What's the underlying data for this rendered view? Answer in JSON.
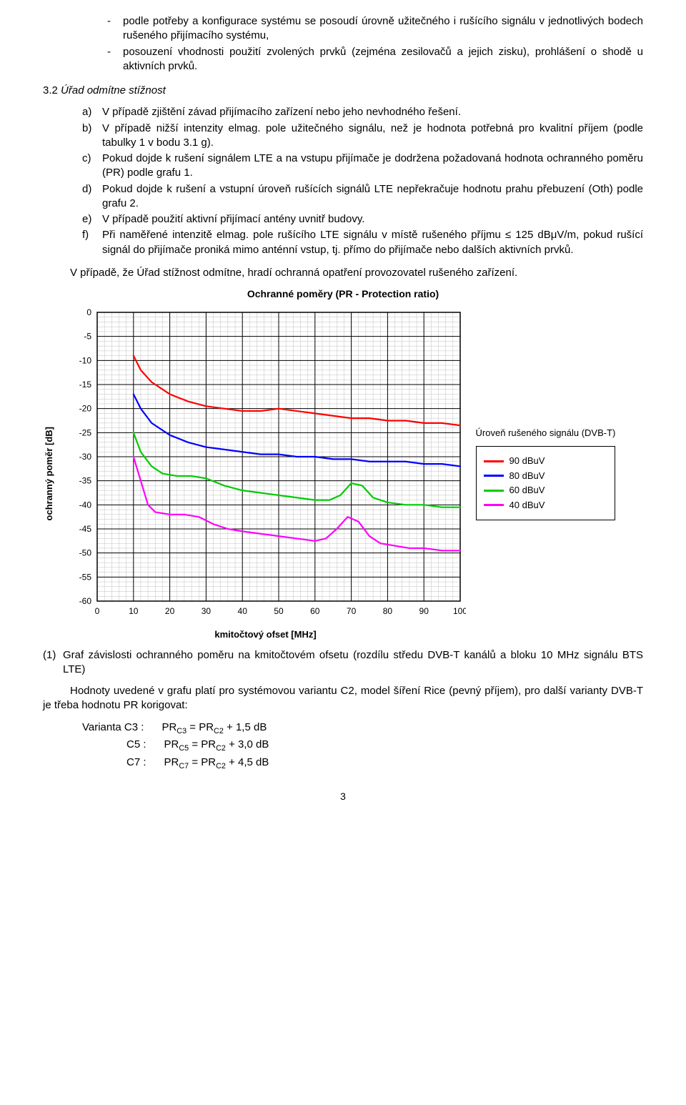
{
  "bullets": [
    "podle potřeby a konfigurace systému se posoudí úrovně užitečného i rušícího signálu v jednotlivých bodech rušeného přijímacího systému,",
    "posouzení vhodnosti použití zvolených prvků (zejména zesilovačů a jejich zisku), prohlášení o shodě u aktivních prvků."
  ],
  "section": {
    "num": "3.2",
    "title": "Úřad odmítne stížnost"
  },
  "letters": [
    {
      "mark": "a)",
      "text": "V případě zjištění závad přijímacího zařízení nebo jeho nevhodného řešení."
    },
    {
      "mark": "b)",
      "text": "V případě nižší intenzity elmag. pole užitečného signálu, než je hodnota potřebná pro kvalitní příjem (podle tabulky 1 v bodu 3.1 g)."
    },
    {
      "mark": "c)",
      "text": "Pokud dojde k rušení signálem LTE a na vstupu přijímače je dodržena požadovaná hodnota ochranného poměru (PR) podle grafu 1."
    },
    {
      "mark": "d)",
      "text": "Pokud dojde k rušení a vstupní úroveň rušících signálů LTE nepřekračuje hodnotu prahu přebuzení (Oth) podle grafu 2."
    },
    {
      "mark": "e)",
      "text": "V případě použití aktivní přijímací antény uvnitř budovy."
    },
    {
      "mark": "f)",
      "text": "Při naměřené intenzitě elmag. pole rušícího LTE signálu v místě rušeného příjmu ≤ 125 dBμV/m, pokud rušící signál do přijímače proniká mimo anténní vstup, tj. přímo do přijímače nebo dalších aktivních prvků."
    }
  ],
  "closing_para": "V případě, že Úřad stížnost odmítne, hradí ochranná opatření provozovatel rušeného zařízení.",
  "chart": {
    "title": "Ochranné poměry (PR - Protection ratio)",
    "y_label": "ochranný poměr [dB]",
    "x_label": "kmitočtový ofset [MHz]",
    "legend_title": "Úroveň rušeného signálu (DVB-T)",
    "legend_items": [
      {
        "color": "#ff0000",
        "label": "90 dBuV"
      },
      {
        "color": "#0000ff",
        "label": "80 dBuV"
      },
      {
        "color": "#00cc00",
        "label": "60 dBuV"
      },
      {
        "color": "#ff00ff",
        "label": "40 dBuV"
      }
    ],
    "xlim": [
      0,
      100
    ],
    "ylim": [
      -60,
      0
    ],
    "xtick_step": 10,
    "ytick_step": 5,
    "xticks": [
      0,
      10,
      20,
      30,
      40,
      50,
      60,
      70,
      80,
      90,
      100
    ],
    "yticks": [
      0,
      -5,
      -10,
      -15,
      -20,
      -25,
      -30,
      -35,
      -40,
      -45,
      -50,
      -55,
      -60
    ],
    "plot_bg": "#ffffff",
    "grid_major_color": "#000000",
    "grid_minor_color": "#bfbfbf",
    "border_color": "#000000",
    "line_width": 2.2,
    "tick_fontsize": 12,
    "series": {
      "s90": {
        "color": "#ff0000",
        "pts": [
          [
            10,
            -9
          ],
          [
            12,
            -12
          ],
          [
            15,
            -14.5
          ],
          [
            20,
            -17
          ],
          [
            25,
            -18.5
          ],
          [
            30,
            -19.5
          ],
          [
            35,
            -20
          ],
          [
            40,
            -20.5
          ],
          [
            45,
            -20.5
          ],
          [
            50,
            -20
          ],
          [
            55,
            -20.5
          ],
          [
            60,
            -21
          ],
          [
            65,
            -21.5
          ],
          [
            70,
            -22
          ],
          [
            75,
            -22
          ],
          [
            80,
            -22.5
          ],
          [
            85,
            -22.5
          ],
          [
            90,
            -23
          ],
          [
            95,
            -23
          ],
          [
            100,
            -23.5
          ]
        ]
      },
      "s80": {
        "color": "#0000ff",
        "pts": [
          [
            10,
            -17
          ],
          [
            12,
            -20
          ],
          [
            15,
            -23
          ],
          [
            20,
            -25.5
          ],
          [
            25,
            -27
          ],
          [
            30,
            -28
          ],
          [
            35,
            -28.5
          ],
          [
            40,
            -29
          ],
          [
            45,
            -29.5
          ],
          [
            50,
            -29.5
          ],
          [
            55,
            -30
          ],
          [
            60,
            -30
          ],
          [
            65,
            -30.5
          ],
          [
            70,
            -30.5
          ],
          [
            75,
            -31
          ],
          [
            80,
            -31
          ],
          [
            85,
            -31
          ],
          [
            90,
            -31.5
          ],
          [
            95,
            -31.5
          ],
          [
            100,
            -32
          ]
        ]
      },
      "s60": {
        "color": "#00cc00",
        "pts": [
          [
            10,
            -25
          ],
          [
            12,
            -29
          ],
          [
            15,
            -32
          ],
          [
            18,
            -33.5
          ],
          [
            22,
            -34
          ],
          [
            26,
            -34
          ],
          [
            30,
            -34.5
          ],
          [
            35,
            -36
          ],
          [
            40,
            -37
          ],
          [
            45,
            -37.5
          ],
          [
            50,
            -38
          ],
          [
            55,
            -38.5
          ],
          [
            60,
            -39
          ],
          [
            64,
            -39
          ],
          [
            67,
            -38
          ],
          [
            70,
            -35.5
          ],
          [
            73,
            -36
          ],
          [
            76,
            -38.5
          ],
          [
            80,
            -39.5
          ],
          [
            85,
            -40
          ],
          [
            90,
            -40
          ],
          [
            95,
            -40.5
          ],
          [
            100,
            -40.5
          ]
        ]
      },
      "s40": {
        "color": "#ff00ff",
        "pts": [
          [
            10,
            -30
          ],
          [
            12,
            -35
          ],
          [
            14,
            -40
          ],
          [
            16,
            -41.5
          ],
          [
            20,
            -42
          ],
          [
            24,
            -42
          ],
          [
            28,
            -42.5
          ],
          [
            32,
            -44
          ],
          [
            36,
            -45
          ],
          [
            40,
            -45.5
          ],
          [
            45,
            -46
          ],
          [
            50,
            -46.5
          ],
          [
            55,
            -47
          ],
          [
            60,
            -47.5
          ],
          [
            63,
            -47
          ],
          [
            66,
            -45
          ],
          [
            69,
            -42.5
          ],
          [
            72,
            -43.5
          ],
          [
            75,
            -46.5
          ],
          [
            78,
            -48
          ],
          [
            82,
            -48.5
          ],
          [
            86,
            -49
          ],
          [
            90,
            -49
          ],
          [
            95,
            -49.5
          ],
          [
            100,
            -49.5
          ]
        ]
      }
    }
  },
  "caption": {
    "num": "(1)",
    "text": "Graf závislosti ochranného poměru na kmitočtovém ofsetu (rozdílu středu DVB-T kanálů a bloku 10 MHz signálu BTS LTE)"
  },
  "post_chart_para": "Hodnoty uvedené v grafu platí pro systémovou variantu C2, model šíření Rice (pevný příjem), pro další varianty DVB-T je třeba hodnotu PR korigovat:",
  "formulas": {
    "r1": {
      "label": "Varianta C3 :",
      "eq": "PR",
      "sub1": "C3",
      "mid": " = PR",
      "sub2": "C2",
      "tail": " + 1,5 dB"
    },
    "r2": {
      "label": "C5 :",
      "eq": "PR",
      "sub1": "C5",
      "mid": " = PR",
      "sub2": "C2",
      "tail": " + 3,0 dB"
    },
    "r3": {
      "label": "C7 :",
      "eq": "PR",
      "sub1": "C7",
      "mid": " = PR",
      "sub2": "C2",
      "tail": " + 4,5 dB"
    }
  },
  "page_number": "3"
}
